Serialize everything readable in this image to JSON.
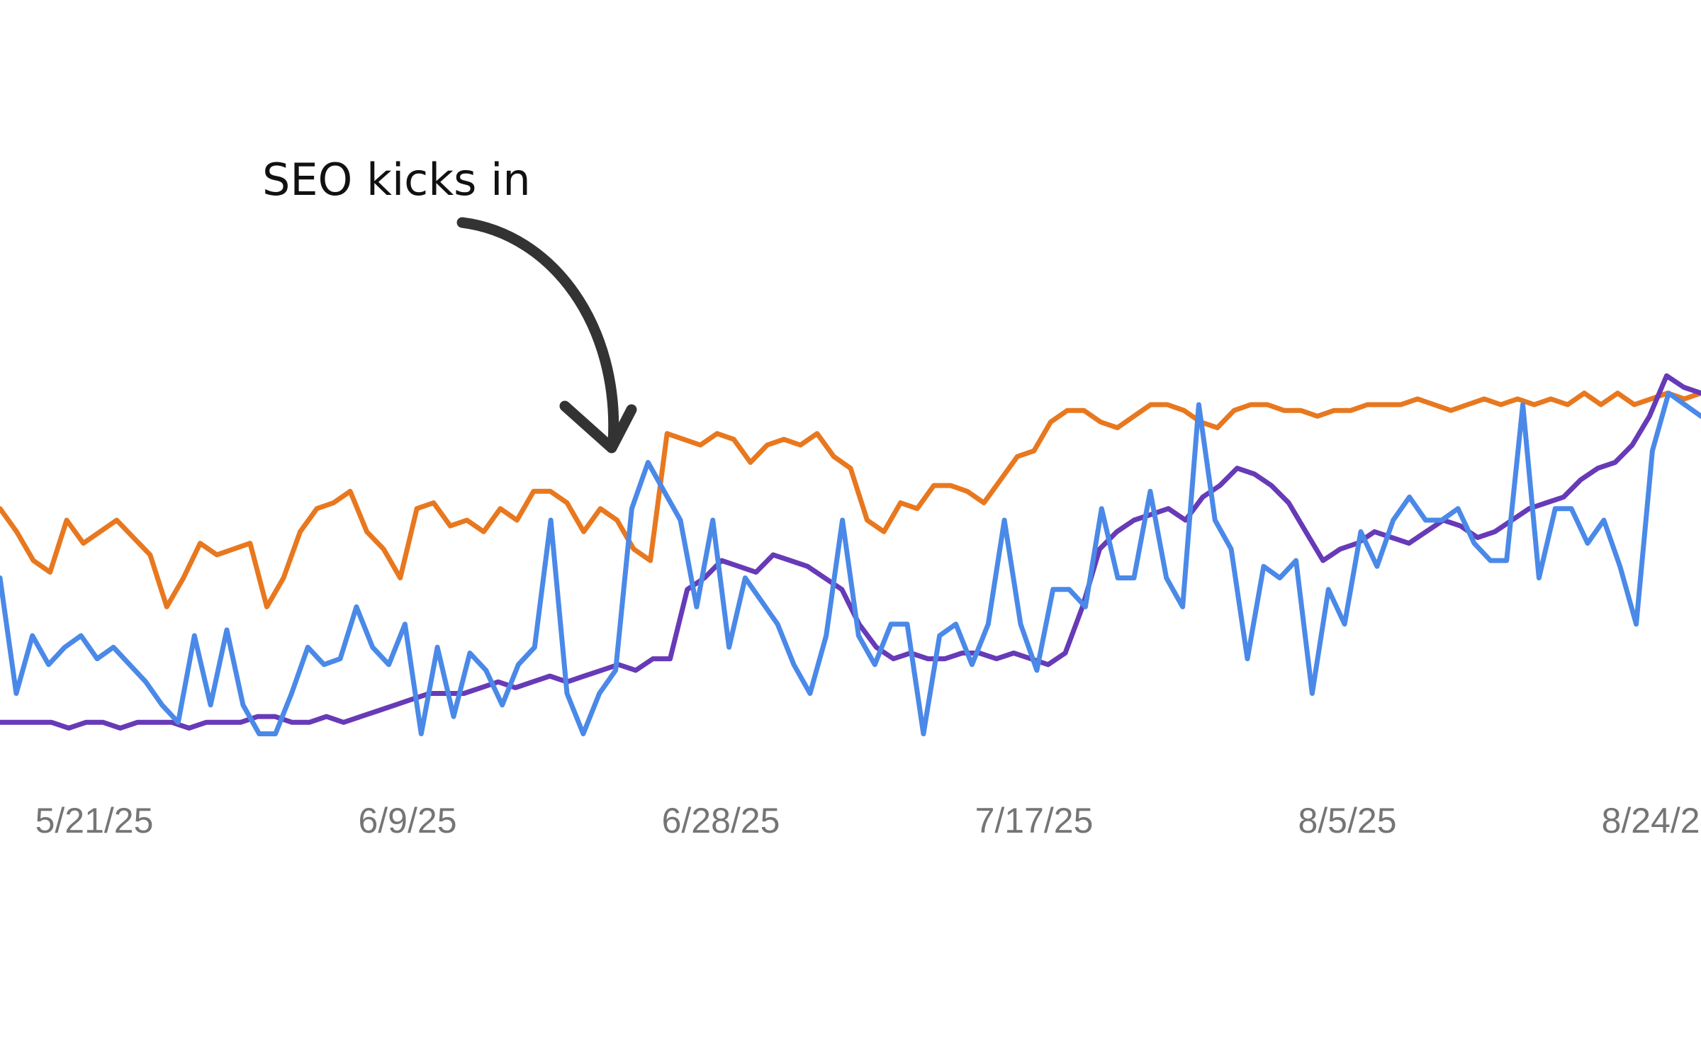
{
  "chart_data": {
    "type": "line",
    "title": "",
    "xlabel": "",
    "ylabel": "",
    "grid": false,
    "legend": "none",
    "x_ticks": [
      "5/21/25",
      "6/9/25",
      "6/28/25",
      "7/17/25",
      "8/5/25",
      "8/24/25"
    ],
    "x_start": "5/15/25",
    "annotation": {
      "text": "SEO kicks in",
      "date": "6/24/25"
    },
    "ylim": [
      0,
      100
    ],
    "series": [
      {
        "color": "#e8781f",
        "values": [
          42,
          38,
          33,
          31,
          40,
          36,
          38,
          40,
          37,
          34,
          25,
          30,
          36,
          34,
          35,
          36,
          25,
          30,
          38,
          42,
          43,
          45,
          38,
          35,
          30,
          42,
          43,
          39,
          40,
          38,
          42,
          40,
          45,
          45,
          43,
          38,
          42,
          40,
          35,
          33,
          55,
          54,
          53,
          55,
          54,
          50,
          53,
          54,
          53,
          55,
          51,
          49,
          40,
          38,
          43,
          42,
          46,
          46,
          45,
          43,
          47,
          51,
          52,
          57,
          59,
          59,
          57,
          56,
          58,
          60,
          60,
          59,
          57,
          56,
          59,
          60,
          60,
          59,
          59,
          58,
          59,
          59,
          60,
          60,
          60,
          61,
          60,
          59,
          60,
          61,
          60,
          61,
          60,
          61,
          60,
          62,
          60,
          62,
          60,
          61,
          62,
          61,
          62
        ]
      },
      {
        "color": "#673ab7",
        "values": [
          5,
          5,
          5,
          5,
          4,
          5,
          5,
          4,
          5,
          5,
          5,
          4,
          5,
          5,
          5,
          6,
          6,
          5,
          5,
          6,
          5,
          6,
          7,
          8,
          9,
          10,
          10,
          10,
          11,
          12,
          11,
          12,
          13,
          12,
          13,
          14,
          15,
          14,
          16,
          16,
          28,
          30,
          33,
          32,
          31,
          34,
          33,
          32,
          30,
          28,
          22,
          18,
          16,
          17,
          16,
          16,
          17,
          17,
          16,
          17,
          16,
          15,
          17,
          25,
          35,
          38,
          40,
          41,
          42,
          40,
          44,
          46,
          49,
          48,
          46,
          43,
          38,
          33,
          35,
          36,
          38,
          37,
          36,
          38,
          40,
          39,
          37,
          38,
          40,
          42,
          43,
          44,
          47,
          49,
          50,
          53,
          58,
          65,
          63,
          62
        ]
      },
      {
        "color": "#4a89e8",
        "values": [
          30,
          10,
          20,
          15,
          18,
          20,
          16,
          18,
          15,
          12,
          8,
          5,
          20,
          8,
          21,
          8,
          3,
          3,
          10,
          18,
          15,
          16,
          25,
          18,
          15,
          22,
          3,
          18,
          6,
          17,
          14,
          8,
          15,
          18,
          40,
          10,
          3,
          10,
          14,
          42,
          50,
          45,
          40,
          25,
          40,
          18,
          30,
          26,
          22,
          15,
          10,
          20,
          40,
          20,
          15,
          22,
          22,
          3,
          20,
          22,
          15,
          22,
          40,
          22,
          14,
          28,
          28,
          25,
          42,
          30,
          30,
          45,
          30,
          25,
          60,
          40,
          35,
          16,
          32,
          30,
          33,
          10,
          28,
          22,
          38,
          32,
          40,
          44,
          40,
          40,
          42,
          36,
          33,
          33,
          60,
          30,
          42,
          42,
          36,
          40,
          32,
          22,
          52,
          62,
          60,
          58
        ]
      }
    ]
  }
}
